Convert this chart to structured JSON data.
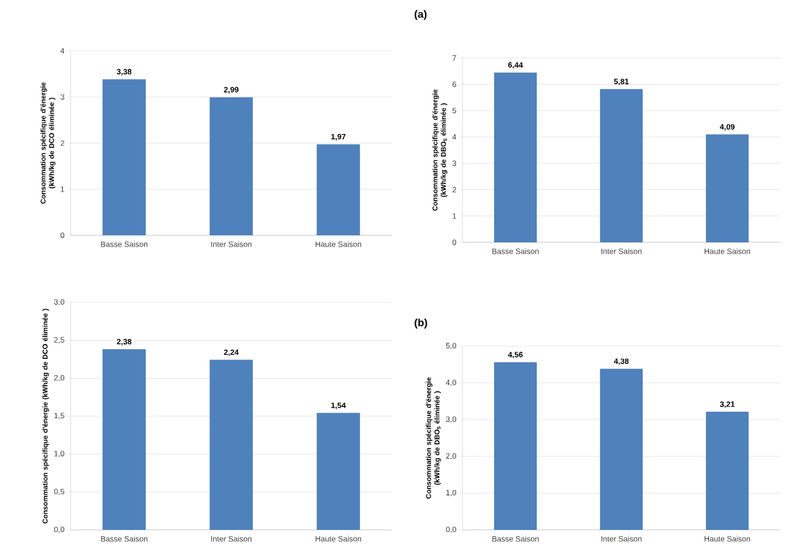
{
  "chart_data": [
    {
      "type": "bar",
      "categories": [
        "Basse Saison",
        "Inter Saison",
        "Haute Saison"
      ],
      "values": [
        3.38,
        2.99,
        1.97
      ],
      "value_labels": [
        "3,38",
        "2,99",
        "1,97"
      ],
      "color": "#4f81bd",
      "ylabel": "Consommation spécifique d'énergie (kWh/kg de DCO éliminée )",
      "ylim": [
        0,
        4
      ],
      "yticks": [
        0,
        1,
        2,
        3,
        4
      ],
      "grid": "y"
    },
    {
      "type": "bar",
      "title": "(a)",
      "categories": [
        "Basse Saison",
        "Inter Saison",
        "Haute Saison"
      ],
      "values": [
        6.44,
        5.81,
        4.09
      ],
      "value_labels": [
        "6,44",
        "5,81",
        "4,09"
      ],
      "color": "#4f81bd",
      "ylabel": "Consommation spécifique d'énergie (kWh/kg de DBO$_{5}$ éliminée )",
      "ylim": [
        0,
        7
      ],
      "yticks": [
        0,
        1,
        2,
        3,
        4,
        5,
        6,
        7
      ],
      "grid": "y"
    },
    {
      "type": "bar",
      "categories": [
        "Basse Saison",
        "Inter Saison",
        "Haute Saison"
      ],
      "values": [
        2.38,
        2.24,
        1.54
      ],
      "value_labels": [
        "2,38",
        "2,24",
        "1,54"
      ],
      "color": "#4f81bd",
      "ylabel": "Consommation spécifique d'énergie (kWh/kg de DCO éliminée )",
      "ylim": [
        0,
        3
      ],
      "yticks": [
        {
          "value": 0,
          "label": "0,0"
        },
        {
          "value": 0.5,
          "label": "0,5"
        },
        {
          "value": 1,
          "label": "1,0"
        },
        {
          "value": 1.5,
          "label": "1,5"
        },
        {
          "value": 2,
          "label": "2,0"
        },
        {
          "value": 2.5,
          "label": "2,5"
        },
        {
          "value": 3,
          "label": "3,0"
        }
      ],
      "grid": "y"
    },
    {
      "type": "bar",
      "title": "(b)",
      "categories": [
        "Basse Saison",
        "Inter Saison",
        "Haute Saison"
      ],
      "values": [
        4.56,
        4.38,
        3.21
      ],
      "value_labels": [
        "4,56",
        "4,38",
        "3,21"
      ],
      "color": "#4f81bd",
      "ylabel": "Consommation spécifique d'énergie (kWh/kg de DBO$_{5}$ éliminée )",
      "ylim": [
        0,
        5
      ],
      "yticks": [
        {
          "value": 0,
          "label": "0,0"
        },
        {
          "value": 1,
          "label": "1,0"
        },
        {
          "value": 2,
          "label": "2,0"
        },
        {
          "value": 3,
          "label": "3,0"
        },
        {
          "value": 4,
          "label": "4,0"
        },
        {
          "value": 5,
          "label": "5,0"
        }
      ],
      "grid": "y"
    }
  ]
}
